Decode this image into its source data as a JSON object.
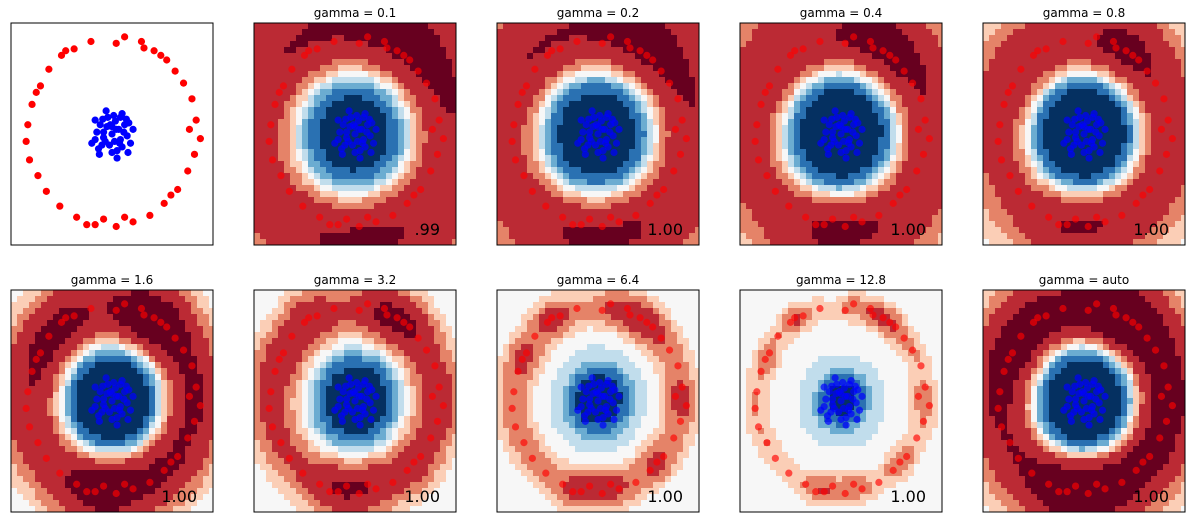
{
  "figure": {
    "description_colors": {
      "inner_class": "#0000ff",
      "outer_class": "#ff0000",
      "axes_edge": "#000000"
    }
  },
  "chart_data": [
    {
      "type": "scatter",
      "title": "",
      "score": "",
      "contour": false,
      "xlim": [
        -1.2,
        1.2
      ],
      "ylim": [
        -1.2,
        1.2
      ]
    },
    {
      "type": "scatter",
      "title": "gamma = 0.1",
      "gamma": 0.1,
      "score": ".99",
      "contour": true,
      "xlim": [
        -1.2,
        1.2
      ],
      "ylim": [
        -1.2,
        1.2
      ]
    },
    {
      "type": "scatter",
      "title": "gamma = 0.2",
      "gamma": 0.2,
      "score": "1.00",
      "contour": true,
      "xlim": [
        -1.2,
        1.2
      ],
      "ylim": [
        -1.2,
        1.2
      ]
    },
    {
      "type": "scatter",
      "title": "gamma = 0.4",
      "gamma": 0.4,
      "score": "1.00",
      "contour": true,
      "xlim": [
        -1.2,
        1.2
      ],
      "ylim": [
        -1.2,
        1.2
      ]
    },
    {
      "type": "scatter",
      "title": "gamma = 0.8",
      "gamma": 0.8,
      "score": "1.00",
      "contour": true,
      "xlim": [
        -1.2,
        1.2
      ],
      "ylim": [
        -1.2,
        1.2
      ]
    },
    {
      "type": "scatter",
      "title": "gamma = 1.6",
      "gamma": 1.6,
      "score": "1.00",
      "contour": true,
      "xlim": [
        -1.2,
        1.2
      ],
      "ylim": [
        -1.2,
        1.2
      ]
    },
    {
      "type": "scatter",
      "title": "gamma = 3.2",
      "gamma": 3.2,
      "score": "1.00",
      "contour": true,
      "xlim": [
        -1.2,
        1.2
      ],
      "ylim": [
        -1.2,
        1.2
      ]
    },
    {
      "type": "scatter",
      "title": "gamma = 6.4",
      "gamma": 6.4,
      "score": "1.00",
      "contour": true,
      "xlim": [
        -1.2,
        1.2
      ],
      "ylim": [
        -1.2,
        1.2
      ]
    },
    {
      "type": "scatter",
      "title": "gamma = 12.8",
      "gamma": 12.8,
      "score": "1.00",
      "contour": true,
      "xlim": [
        -1.2,
        1.2
      ],
      "ylim": [
        -1.2,
        1.2
      ]
    },
    {
      "type": "scatter",
      "title": "gamma = auto",
      "gamma": "auto",
      "score": "1.00",
      "contour": true,
      "xlim": [
        -1.2,
        1.2
      ],
      "ylim": [
        -1.2,
        1.2
      ]
    }
  ],
  "points": {
    "outer_ring": [
      [
        0.15,
        1.05
      ],
      [
        0.35,
        1.0
      ],
      [
        -0.25,
        1.0
      ],
      [
        0.5,
        0.9
      ],
      [
        0.05,
        0.98
      ],
      [
        -0.45,
        0.92
      ],
      [
        -0.6,
        0.85
      ],
      [
        0.65,
        0.8
      ],
      [
        0.75,
        0.68
      ],
      [
        -0.75,
        0.7
      ],
      [
        0.85,
        0.55
      ],
      [
        -0.85,
        0.52
      ],
      [
        0.95,
        0.38
      ],
      [
        -0.95,
        0.32
      ],
      [
        1.0,
        0.15
      ],
      [
        -1.0,
        0.1
      ],
      [
        1.05,
        -0.05
      ],
      [
        -1.02,
        -0.08
      ],
      [
        0.98,
        -0.22
      ],
      [
        -0.98,
        -0.28
      ],
      [
        0.9,
        -0.4
      ],
      [
        -0.88,
        -0.45
      ],
      [
        0.78,
        -0.6
      ],
      [
        -0.78,
        -0.62
      ],
      [
        0.62,
        -0.75
      ],
      [
        -0.62,
        -0.78
      ],
      [
        0.45,
        -0.88
      ],
      [
        -0.42,
        -0.9
      ],
      [
        0.25,
        -0.95
      ],
      [
        -0.2,
        -0.98
      ],
      [
        0.05,
        -1.0
      ],
      [
        0.38,
        0.93
      ],
      [
        -0.1,
        -0.92
      ],
      [
        0.7,
        -0.66
      ],
      [
        -0.9,
        0.45
      ],
      [
        0.92,
        0.05
      ],
      [
        -0.55,
        0.9
      ],
      [
        0.58,
        0.85
      ],
      [
        -0.3,
        -0.98
      ],
      [
        0.15,
        -0.9
      ]
    ],
    "inner_cluster": [
      [
        0.0,
        0.0
      ],
      [
        0.08,
        0.05
      ],
      [
        -0.06,
        0.08
      ],
      [
        0.1,
        -0.06
      ],
      [
        -0.1,
        -0.04
      ],
      [
        0.04,
        0.14
      ],
      [
        -0.03,
        -0.12
      ],
      [
        0.15,
        0.1
      ],
      [
        -0.14,
        0.1
      ],
      [
        0.12,
        -0.14
      ],
      [
        -0.12,
        -0.12
      ],
      [
        0.02,
        0.2
      ],
      [
        0.18,
        -0.02
      ],
      [
        -0.18,
        0.02
      ],
      [
        0.0,
        -0.2
      ],
      [
        0.2,
        0.12
      ],
      [
        -0.05,
        0.18
      ],
      [
        0.06,
        -0.18
      ],
      [
        0.1,
        0.18
      ],
      [
        -0.16,
        -0.16
      ],
      [
        0.22,
        -0.1
      ],
      [
        -0.2,
        0.15
      ],
      [
        0.05,
        0.05
      ],
      [
        -0.08,
        -0.08
      ],
      [
        0.14,
        0.02
      ],
      [
        -0.02,
        0.1
      ],
      [
        0.09,
        -0.1
      ],
      [
        -0.11,
        0.16
      ],
      [
        0.17,
        0.16
      ],
      [
        0.03,
        -0.08
      ],
      [
        -0.2,
        -0.06
      ],
      [
        0.12,
        0.22
      ],
      [
        -0.07,
        0.25
      ],
      [
        0.0,
        0.08
      ],
      [
        0.25,
        0.05
      ],
      [
        -0.15,
        -0.22
      ],
      [
        0.06,
        -0.26
      ],
      [
        0.19,
        -0.2
      ],
      [
        -0.24,
        -0.1
      ],
      [
        -0.1,
        0.02
      ]
    ]
  }
}
